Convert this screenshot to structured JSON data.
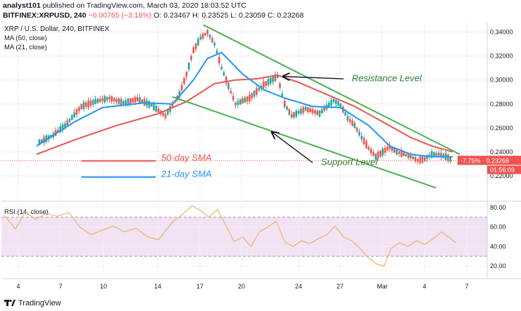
{
  "header": {
    "author": "analyst101",
    "published_text": "published on TradingView.com, March 03, 2020 18:03:52 UTC",
    "symbol": "BITFINEX:XRPUSD, 240",
    "open": "O: 0.23467",
    "high": "H: 0.23525",
    "low": "L: 0.23059",
    "close": "C: 0.23268",
    "change": "−0.00765 (−3.18%)",
    "change_color": "#ef5350"
  },
  "footer": {
    "brand": "TradingView"
  },
  "chart_data": [
    {
      "type": "candlestick",
      "title": "XRP / U.S. Dollar, 240, BITFINEX",
      "indicators": [
        "MA (50, close)",
        "MA (21, close)"
      ],
      "ylim": [
        0.2,
        0.348
      ],
      "y_ticks": [
        "0.34000",
        "0.32000",
        "0.30000",
        "0.28000",
        "0.26000",
        "0.24000",
        "0.22000"
      ],
      "x_ticks": [
        "4",
        "7",
        "10",
        "14",
        "17",
        "20",
        "24",
        "27",
        "Mar",
        "4",
        "7"
      ],
      "grid": true,
      "price_label": {
        "change": "-7.75%",
        "value": "0.23268",
        "countdown": "01:56:09"
      },
      "colors": {
        "up": "#26a69a",
        "down": "#ef5350",
        "ma50": "#ef5350",
        "ma21": "#2196f3",
        "trendline": "#4caf50"
      },
      "series_close": [
        {
          "x": 2.5,
          "y": 0.248
        },
        {
          "x": 3.5,
          "y": 0.254
        },
        {
          "x": 4.5,
          "y": 0.264
        },
        {
          "x": 5.5,
          "y": 0.278
        },
        {
          "x": 6.5,
          "y": 0.282
        },
        {
          "x": 7.5,
          "y": 0.285
        },
        {
          "x": 8.5,
          "y": 0.281
        },
        {
          "x": 9.5,
          "y": 0.284
        },
        {
          "x": 10.5,
          "y": 0.279
        },
        {
          "x": 11.5,
          "y": 0.27
        },
        {
          "x": 12.5,
          "y": 0.288
        },
        {
          "x": 13.0,
          "y": 0.305
        },
        {
          "x": 13.5,
          "y": 0.325
        },
        {
          "x": 14.0,
          "y": 0.335
        },
        {
          "x": 14.5,
          "y": 0.34
        },
        {
          "x": 15.0,
          "y": 0.33
        },
        {
          "x": 15.5,
          "y": 0.31
        },
        {
          "x": 16.0,
          "y": 0.295
        },
        {
          "x": 16.5,
          "y": 0.28
        },
        {
          "x": 17.5,
          "y": 0.285
        },
        {
          "x": 18.5,
          "y": 0.296
        },
        {
          "x": 19.5,
          "y": 0.303
        },
        {
          "x": 20.0,
          "y": 0.28
        },
        {
          "x": 20.5,
          "y": 0.27
        },
        {
          "x": 21.5,
          "y": 0.276
        },
        {
          "x": 22.5,
          "y": 0.272
        },
        {
          "x": 23.5,
          "y": 0.283
        },
        {
          "x": 24.0,
          "y": 0.279
        },
        {
          "x": 24.5,
          "y": 0.268
        },
        {
          "x": 25.0,
          "y": 0.262
        },
        {
          "x": 25.5,
          "y": 0.252
        },
        {
          "x": 26.0,
          "y": 0.243
        },
        {
          "x": 26.5,
          "y": 0.236
        },
        {
          "x": 27.0,
          "y": 0.24
        },
        {
          "x": 27.5,
          "y": 0.244
        },
        {
          "x": 28.0,
          "y": 0.24
        },
        {
          "x": 28.5,
          "y": 0.238
        },
        {
          "x": 29.0,
          "y": 0.236
        },
        {
          "x": 29.5,
          "y": 0.233
        },
        {
          "x": 30.0,
          "y": 0.234
        },
        {
          "x": 30.5,
          "y": 0.238
        },
        {
          "x": 31.0,
          "y": 0.238
        },
        {
          "x": 31.5,
          "y": 0.236
        },
        {
          "x": 32.0,
          "y": 0.233
        }
      ],
      "ma50": [
        {
          "x": 2.3,
          "y": 0.238
        },
        {
          "x": 5.0,
          "y": 0.25
        },
        {
          "x": 8.0,
          "y": 0.262
        },
        {
          "x": 11.0,
          "y": 0.272
        },
        {
          "x": 13.0,
          "y": 0.282
        },
        {
          "x": 15.0,
          "y": 0.297
        },
        {
          "x": 16.5,
          "y": 0.3
        },
        {
          "x": 18.0,
          "y": 0.301
        },
        {
          "x": 19.5,
          "y": 0.304
        },
        {
          "x": 21.0,
          "y": 0.298
        },
        {
          "x": 23.0,
          "y": 0.288
        },
        {
          "x": 25.0,
          "y": 0.278
        },
        {
          "x": 27.0,
          "y": 0.265
        },
        {
          "x": 29.0,
          "y": 0.252
        },
        {
          "x": 30.5,
          "y": 0.245
        },
        {
          "x": 32.0,
          "y": 0.24
        }
      ],
      "ma21": [
        {
          "x": 2.3,
          "y": 0.245
        },
        {
          "x": 5.0,
          "y": 0.265
        },
        {
          "x": 7.0,
          "y": 0.277
        },
        {
          "x": 10.0,
          "y": 0.281
        },
        {
          "x": 12.0,
          "y": 0.28
        },
        {
          "x": 13.5,
          "y": 0.3
        },
        {
          "x": 14.5,
          "y": 0.318
        },
        {
          "x": 15.5,
          "y": 0.323
        },
        {
          "x": 17.0,
          "y": 0.305
        },
        {
          "x": 18.5,
          "y": 0.292
        },
        {
          "x": 20.0,
          "y": 0.285
        },
        {
          "x": 22.0,
          "y": 0.278
        },
        {
          "x": 24.0,
          "y": 0.277
        },
        {
          "x": 26.0,
          "y": 0.262
        },
        {
          "x": 27.5,
          "y": 0.245
        },
        {
          "x": 29.0,
          "y": 0.238
        },
        {
          "x": 30.5,
          "y": 0.236
        },
        {
          "x": 32.0,
          "y": 0.236
        }
      ],
      "trendlines": [
        {
          "x1": 14.2,
          "y1": 0.346,
          "x2": 32.5,
          "y2": 0.238
        },
        {
          "x1": 12.0,
          "y1": 0.286,
          "x2": 30.8,
          "y2": 0.21
        }
      ],
      "annotations": [
        {
          "text": "Resistance Level",
          "x": 24.8,
          "y": 0.299,
          "color": "#2e7d32"
        },
        {
          "text": "Support Level",
          "x": 22.6,
          "y": 0.229,
          "color": "#2e7d32"
        },
        {
          "text": "50-day SMA",
          "x": 11.2,
          "y": 0.2325,
          "color": "#ef5350"
        },
        {
          "text": "21-day SMA",
          "x": 11.2,
          "y": 0.219,
          "color": "#2196f3"
        }
      ],
      "legend_lines": [
        {
          "x1": 5.5,
          "x2": 10.8,
          "y": 0.2325,
          "color": "#ef5350"
        },
        {
          "x1": 5.5,
          "x2": 10.8,
          "y": 0.219,
          "color": "#2196f3"
        }
      ],
      "arrows": [
        {
          "from_x": 24.2,
          "from_y": 0.301,
          "to_x": 19.9,
          "to_y": 0.303
        },
        {
          "from_x": 22.0,
          "from_y": 0.231,
          "to_x": 19.1,
          "to_y": 0.2565
        }
      ]
    },
    {
      "type": "line",
      "title": "RSI (14, close)",
      "ylim": [
        10,
        85
      ],
      "y_ticks": [
        "80.00",
        "60.00",
        "40.00",
        "20.00"
      ],
      "band": [
        30,
        70
      ],
      "color": "#f0b266",
      "band_color": "#e1bee7",
      "values": [
        {
          "x": 0.0,
          "y": 72
        },
        {
          "x": 0.8,
          "y": 58
        },
        {
          "x": 1.5,
          "y": 76
        },
        {
          "x": 2.2,
          "y": 68
        },
        {
          "x": 3.0,
          "y": 74
        },
        {
          "x": 3.8,
          "y": 71
        },
        {
          "x": 4.6,
          "y": 75
        },
        {
          "x": 5.4,
          "y": 60
        },
        {
          "x": 6.2,
          "y": 52
        },
        {
          "x": 7.0,
          "y": 57
        },
        {
          "x": 7.8,
          "y": 61
        },
        {
          "x": 8.6,
          "y": 55
        },
        {
          "x": 9.4,
          "y": 59
        },
        {
          "x": 10.2,
          "y": 50
        },
        {
          "x": 11.0,
          "y": 47
        },
        {
          "x": 12.0,
          "y": 65
        },
        {
          "x": 12.8,
          "y": 74
        },
        {
          "x": 13.4,
          "y": 82
        },
        {
          "x": 14.0,
          "y": 77
        },
        {
          "x": 14.6,
          "y": 70
        },
        {
          "x": 15.2,
          "y": 78
        },
        {
          "x": 15.8,
          "y": 62
        },
        {
          "x": 16.4,
          "y": 45
        },
        {
          "x": 17.0,
          "y": 50
        },
        {
          "x": 17.6,
          "y": 40
        },
        {
          "x": 18.2,
          "y": 55
        },
        {
          "x": 18.8,
          "y": 60
        },
        {
          "x": 19.4,
          "y": 66
        },
        {
          "x": 20.0,
          "y": 45
        },
        {
          "x": 20.6,
          "y": 40
        },
        {
          "x": 21.2,
          "y": 46
        },
        {
          "x": 21.8,
          "y": 43
        },
        {
          "x": 22.4,
          "y": 48
        },
        {
          "x": 23.0,
          "y": 52
        },
        {
          "x": 23.6,
          "y": 61
        },
        {
          "x": 24.2,
          "y": 50
        },
        {
          "x": 24.8,
          "y": 46
        },
        {
          "x": 25.4,
          "y": 38
        },
        {
          "x": 26.0,
          "y": 28
        },
        {
          "x": 26.6,
          "y": 22
        },
        {
          "x": 27.1,
          "y": 20
        },
        {
          "x": 27.6,
          "y": 38
        },
        {
          "x": 28.2,
          "y": 44
        },
        {
          "x": 28.8,
          "y": 40
        },
        {
          "x": 29.4,
          "y": 46
        },
        {
          "x": 30.0,
          "y": 42
        },
        {
          "x": 30.6,
          "y": 48
        },
        {
          "x": 31.2,
          "y": 55
        },
        {
          "x": 31.7,
          "y": 50
        },
        {
          "x": 32.2,
          "y": 44
        }
      ]
    }
  ]
}
